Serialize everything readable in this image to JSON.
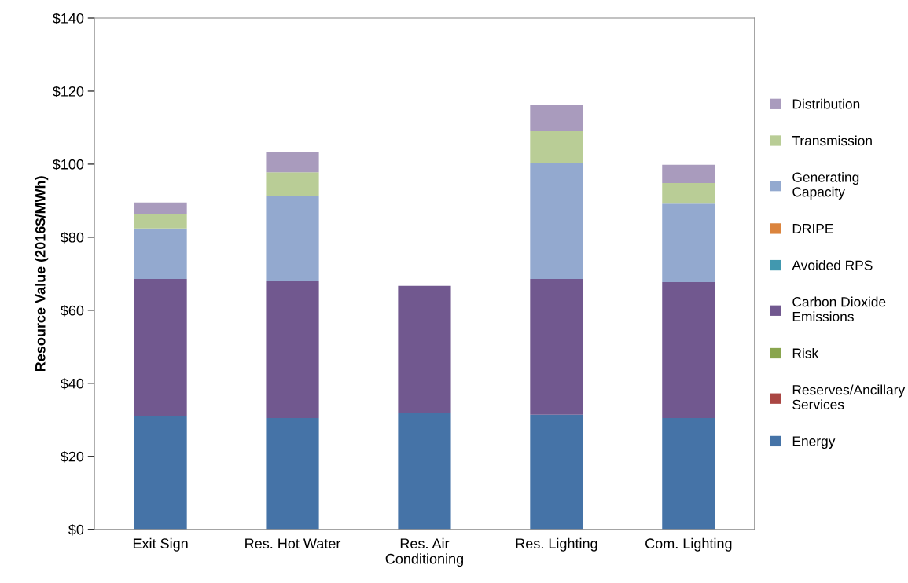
{
  "chart_data": {
    "type": "bar",
    "stacked": true,
    "ylabel": "Resource Value (2016$/MWh)",
    "categories": [
      "Exit Sign",
      "Res. Hot Water",
      "Res. Air\nConditioning",
      "Res. Lighting",
      "Com. Lighting"
    ],
    "series": [
      {
        "name": "Energy",
        "color": "#4573a7",
        "values": [
          31.0,
          30.5,
          32.0,
          31.4,
          30.5
        ]
      },
      {
        "name": "Reserves/Ancillary\nServices",
        "color": "#aa4643",
        "values": [
          0,
          0,
          0,
          0,
          0
        ]
      },
      {
        "name": "Risk",
        "color": "#89a54e",
        "values": [
          0,
          0,
          0,
          0,
          0
        ]
      },
      {
        "name": "Carbon Dioxide\nEmissions",
        "color": "#71588f",
        "values": [
          37.6,
          37.5,
          34.7,
          37.2,
          37.2
        ]
      },
      {
        "name": "Avoided RPS",
        "color": "#4198af",
        "values": [
          0,
          0,
          0,
          0,
          0
        ]
      },
      {
        "name": "DRIPE",
        "color": "#db843d",
        "values": [
          0,
          0,
          0,
          0,
          0
        ]
      },
      {
        "name": "Generating\nCapacity",
        "color": "#93a9cf",
        "values": [
          13.8,
          23.4,
          0,
          31.8,
          21.5
        ]
      },
      {
        "name": "Transmission",
        "color": "#b9cd96",
        "values": [
          3.8,
          6.4,
          0,
          8.6,
          5.6
        ]
      },
      {
        "name": "Distribution",
        "color": "#a99bbd",
        "values": [
          3.3,
          5.4,
          0,
          7.3,
          5.0
        ]
      }
    ],
    "ylim": [
      0,
      140
    ],
    "yticks": [
      {
        "value": 0,
        "label": "$0"
      },
      {
        "value": 20,
        "label": "$20"
      },
      {
        "value": 40,
        "label": "$40"
      },
      {
        "value": 60,
        "label": "$60"
      },
      {
        "value": 80,
        "label": "$80"
      },
      {
        "value": 100,
        "label": "$100"
      },
      {
        "value": 120,
        "label": "$120"
      },
      {
        "value": 140,
        "label": "$140"
      }
    ],
    "grid": false,
    "legend": "right"
  }
}
